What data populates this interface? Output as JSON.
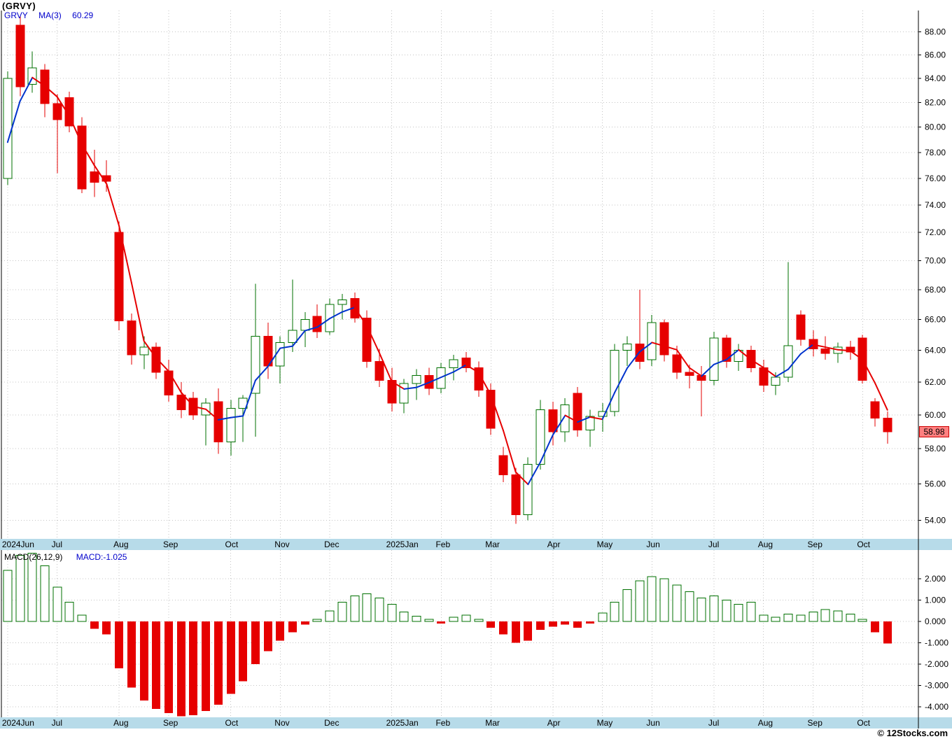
{
  "window": {
    "title": "(GRVY)"
  },
  "legend": {
    "symbol": "GRVY",
    "indicator": "MA(3)",
    "value": "60.29"
  },
  "macd_legend": {
    "label": "MACD(26,12,9)",
    "value_label": "MACD:-1.025"
  },
  "price_badge": "58.98",
  "watermark": "© 12Stocks.com",
  "colors": {
    "up": "#007000",
    "down": "#e60000",
    "ma_up": "#0033cc",
    "ma_down": "#e60000",
    "grid": "#c4c4c4",
    "axis_strip": "#b7dbe9",
    "axis_line": "#000000",
    "label": "#000000",
    "legend_blue": "#0000cc",
    "badge_bg": "#ff8080",
    "badge_border": "#cc0000"
  },
  "chart_data": {
    "type": "candlestick",
    "symbol": "GRVY",
    "timeframe": "weekly",
    "panels": [
      "price",
      "macd"
    ],
    "last_price": 58.98,
    "ma_period": 3,
    "ma_last": 60.29,
    "macd_params": "26,12,9",
    "macd_last": -1.025,
    "price_axis": {
      "scale": "log",
      "ticks": [
        88,
        86,
        84,
        82,
        80,
        78,
        76,
        74,
        72,
        70,
        68,
        66,
        64,
        62,
        60,
        58,
        56,
        54
      ],
      "top_price": 89.9,
      "bottom_price": 53.0
    },
    "macd_axis": {
      "ticks": [
        2,
        1,
        0,
        -1,
        -2,
        -3,
        -4
      ],
      "top": 3.3,
      "bottom": -4.5
    },
    "month_ticks": [
      {
        "index": 0,
        "label": "2024Jun"
      },
      {
        "index": 4,
        "label": "Jul"
      },
      {
        "index": 9,
        "label": "Aug"
      },
      {
        "index": 13,
        "label": "Sep"
      },
      {
        "index": 18,
        "label": "Oct"
      },
      {
        "index": 22,
        "label": "Nov"
      },
      {
        "index": 26,
        "label": "Dec"
      },
      {
        "index": 31,
        "label": "2025Jan"
      },
      {
        "index": 35,
        "label": "Feb"
      },
      {
        "index": 39,
        "label": "Mar"
      },
      {
        "index": 44,
        "label": "Apr"
      },
      {
        "index": 48,
        "label": "May"
      },
      {
        "index": 52,
        "label": "Jun"
      },
      {
        "index": 57,
        "label": "Jul"
      },
      {
        "index": 61,
        "label": "Aug"
      },
      {
        "index": 65,
        "label": "Sep"
      },
      {
        "index": 69,
        "label": "Oct"
      }
    ],
    "ma_lead_in": [
      78.8,
      82.1
    ],
    "candles": [
      [
        76.0,
        84.6,
        75.5,
        84.0
      ],
      [
        88.6,
        89.4,
        82.5,
        83.3
      ],
      [
        83.5,
        86.3,
        82.8,
        84.9
      ],
      [
        84.7,
        85.2,
        80.8,
        81.9
      ],
      [
        81.9,
        82.7,
        76.4,
        80.6
      ],
      [
        82.4,
        82.9,
        79.6,
        80.1
      ],
      [
        80.1,
        80.8,
        74.9,
        75.2
      ],
      [
        76.5,
        78.2,
        74.6,
        75.7
      ],
      [
        76.2,
        77.4,
        75.0,
        75.8
      ],
      [
        72.0,
        72.8,
        65.3,
        65.9
      ],
      [
        65.9,
        66.4,
        63.1,
        63.7
      ],
      [
        63.7,
        64.9,
        62.8,
        64.2
      ],
      [
        64.2,
        64.5,
        62.2,
        62.6
      ],
      [
        62.7,
        63.4,
        60.8,
        61.2
      ],
      [
        61.2,
        62.0,
        59.8,
        60.3
      ],
      [
        61.0,
        61.4,
        59.7,
        60.0
      ],
      [
        60.0,
        61.0,
        58.2,
        60.7
      ],
      [
        60.8,
        61.6,
        57.7,
        58.4
      ],
      [
        58.4,
        60.9,
        57.6,
        60.4
      ],
      [
        60.4,
        61.2,
        58.4,
        61.0
      ],
      [
        61.3,
        68.4,
        58.7,
        64.9
      ],
      [
        64.9,
        65.8,
        62.2,
        63.0
      ],
      [
        63.0,
        64.9,
        61.9,
        64.5
      ],
      [
        64.5,
        68.7,
        63.9,
        65.3
      ],
      [
        65.3,
        66.5,
        64.2,
        66.0
      ],
      [
        66.2,
        67.0,
        64.8,
        65.2
      ],
      [
        65.2,
        67.4,
        65.0,
        67.0
      ],
      [
        67.0,
        67.7,
        66.0,
        67.3
      ],
      [
        67.4,
        67.8,
        65.8,
        66.1
      ],
      [
        66.1,
        66.6,
        62.9,
        63.3
      ],
      [
        63.3,
        64.1,
        61.7,
        62.1
      ],
      [
        62.1,
        62.9,
        60.2,
        60.7
      ],
      [
        60.7,
        62.2,
        60.1,
        61.9
      ],
      [
        61.9,
        62.8,
        60.9,
        62.4
      ],
      [
        62.4,
        62.9,
        61.2,
        61.6
      ],
      [
        61.6,
        63.2,
        61.3,
        62.9
      ],
      [
        62.9,
        63.7,
        62.1,
        63.4
      ],
      [
        63.5,
        63.9,
        62.6,
        62.9
      ],
      [
        62.9,
        63.3,
        61.1,
        61.5
      ],
      [
        61.5,
        61.9,
        58.8,
        59.2
      ],
      [
        57.6,
        58.1,
        56.1,
        56.5
      ],
      [
        56.5,
        56.9,
        53.8,
        54.3
      ],
      [
        54.3,
        57.5,
        54.0,
        57.1
      ],
      [
        57.1,
        60.9,
        56.8,
        60.3
      ],
      [
        60.3,
        60.8,
        58.2,
        59.0
      ],
      [
        59.0,
        61.0,
        58.4,
        60.6
      ],
      [
        61.3,
        61.7,
        58.7,
        59.1
      ],
      [
        59.1,
        60.3,
        58.1,
        59.9
      ],
      [
        59.9,
        60.7,
        59.0,
        60.2
      ],
      [
        60.2,
        64.4,
        59.9,
        64.0
      ],
      [
        64.0,
        64.9,
        63.0,
        64.4
      ],
      [
        64.4,
        68.0,
        62.8,
        63.3
      ],
      [
        63.4,
        66.3,
        63.0,
        65.8
      ],
      [
        65.8,
        66.0,
        63.3,
        63.7
      ],
      [
        63.7,
        64.3,
        62.2,
        62.6
      ],
      [
        62.6,
        63.1,
        61.6,
        62.4
      ],
      [
        62.4,
        63.0,
        59.9,
        62.1
      ],
      [
        62.1,
        65.2,
        61.8,
        64.8
      ],
      [
        64.8,
        65.0,
        62.9,
        63.3
      ],
      [
        63.3,
        64.4,
        62.7,
        64.0
      ],
      [
        64.0,
        64.3,
        62.6,
        62.9
      ],
      [
        62.9,
        63.4,
        61.4,
        61.8
      ],
      [
        61.8,
        62.6,
        61.2,
        62.3
      ],
      [
        62.3,
        69.9,
        62.0,
        64.3
      ],
      [
        66.3,
        66.6,
        64.3,
        64.7
      ],
      [
        64.7,
        65.3,
        63.6,
        64.1
      ],
      [
        64.1,
        64.9,
        63.4,
        63.8
      ],
      [
        63.8,
        64.5,
        63.2,
        64.2
      ],
      [
        64.2,
        64.6,
        63.4,
        63.9
      ],
      [
        64.8,
        65.0,
        61.9,
        62.1
      ],
      [
        60.8,
        61.0,
        59.3,
        59.8
      ],
      [
        59.8,
        60.2,
        58.3,
        58.98
      ]
    ],
    "macd": [
      2.4,
      3.1,
      3.2,
      2.6,
      1.6,
      0.9,
      0.3,
      -0.35,
      -0.6,
      -2.2,
      -3.1,
      -3.7,
      -4.1,
      -4.3,
      -4.45,
      -4.4,
      -4.2,
      -3.9,
      -3.4,
      -2.8,
      -2.0,
      -1.4,
      -0.9,
      -0.5,
      -0.15,
      0.1,
      0.5,
      0.9,
      1.2,
      1.3,
      1.1,
      0.8,
      0.45,
      0.25,
      0.1,
      -0.1,
      0.2,
      0.3,
      0.1,
      -0.3,
      -0.6,
      -1.0,
      -0.9,
      -0.4,
      -0.25,
      -0.15,
      -0.3,
      -0.1,
      0.4,
      0.9,
      1.5,
      1.9,
      2.1,
      2.0,
      1.7,
      1.4,
      1.1,
      1.2,
      1.0,
      0.8,
      0.9,
      0.3,
      0.2,
      0.35,
      0.3,
      0.45,
      0.55,
      0.5,
      0.35,
      0.1,
      -0.5,
      -1.025
    ]
  }
}
